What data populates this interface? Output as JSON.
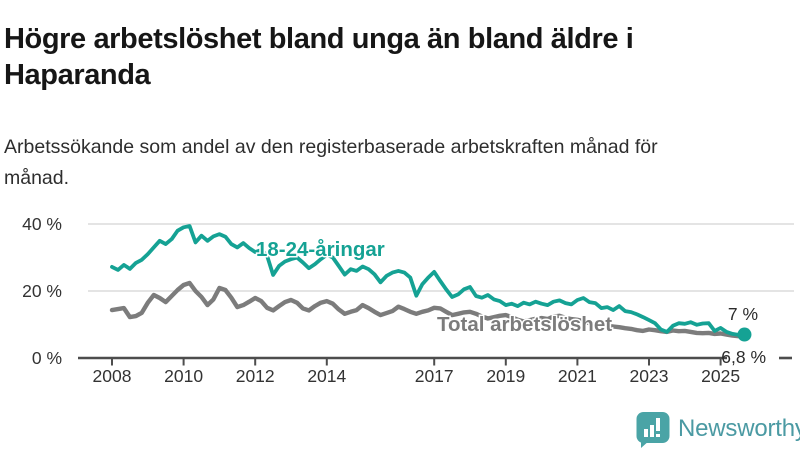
{
  "header": {
    "title": "Högre arbetslöshet bland unga än bland äldre i Haparanda",
    "subtitle": "Arbetssökande som andel av den registerbaserade arbetskraften månad för månad."
  },
  "footer": {
    "brand": "Newsworthy"
  },
  "colors": {
    "youth": "#15a294",
    "total": "#7c7c7c",
    "axis": "#4d4d4d",
    "grid": "#dcdcdc",
    "tick_text": "#333333",
    "end_label_text": "#2b2b2b",
    "logo_bubble": "#4aa4a6",
    "logo_glyph": "#ffffff"
  },
  "chart_data": {
    "type": "line",
    "title": "Högre arbetslöshet bland unga än bland äldre i Haparanda",
    "subtitle": "Arbetssökande som andel av den registerbaserade arbetskraften månad för månad.",
    "xlabel": "",
    "ylabel": "",
    "grid": "horizontal-only",
    "legend_position": "inline-labels",
    "x_start_year": 2008,
    "x_step_months": 2,
    "xlim": [
      2008,
      2025.67
    ],
    "ylim": [
      0,
      44
    ],
    "x_tick_years": [
      2008,
      2010,
      2012,
      2014,
      2017,
      2019,
      2021,
      2023,
      2025
    ],
    "x_tick_labels": [
      "2008",
      "2010",
      "2012",
      "2014",
      "2017",
      "2019",
      "2021",
      "2023",
      "2025"
    ],
    "y_ticks": [
      {
        "value": 0,
        "label": "0 %"
      },
      {
        "value": 20,
        "label": "20 %"
      },
      {
        "value": 40,
        "label": "40 %"
      }
    ],
    "series": [
      {
        "name": "Total arbetslöshet",
        "color_key": "total",
        "end_label": "6,8 %",
        "end_dot": false,
        "values": [
          14.3,
          14.6,
          14.9,
          12.2,
          12.5,
          13.5,
          16.5,
          18.8,
          17.9,
          16.7,
          18.5,
          20.3,
          21.8,
          22.4,
          20.0,
          18.2,
          15.8,
          17.5,
          20.9,
          20.3,
          18.0,
          15.2,
          15.8,
          16.8,
          17.9,
          17.0,
          15.0,
          14.2,
          15.5,
          16.7,
          17.3,
          16.5,
          14.8,
          14.2,
          15.5,
          16.5,
          17.0,
          16.2,
          14.5,
          13.2,
          13.8,
          14.3,
          15.8,
          14.9,
          13.8,
          12.8,
          13.4,
          14.0,
          15.3,
          14.6,
          13.8,
          13.2,
          13.8,
          14.2,
          15.0,
          14.8,
          13.8,
          12.8,
          13.2,
          13.6,
          13.8,
          13.2,
          12.4,
          11.8,
          12.2,
          12.6,
          12.8,
          12.2,
          11.4,
          10.9,
          11.3,
          11.7,
          11.9,
          11.6,
          12.4,
          12.6,
          12.0,
          11.6,
          11.4,
          11.0,
          10.4,
          9.9,
          9.7,
          9.5,
          9.4,
          9.2,
          8.9,
          8.7,
          8.3,
          8.1,
          8.5,
          8.3,
          8.0,
          7.8,
          8.2,
          8.0,
          8.1,
          7.8,
          7.5,
          7.4,
          7.5,
          7.2,
          7.3,
          7.0,
          6.7,
          6.5,
          6.8
        ]
      },
      {
        "name": "18-24-åringar",
        "color_key": "youth",
        "end_label": "7 %",
        "end_dot": true,
        "values": [
          27.2,
          26.3,
          27.8,
          26.6,
          28.4,
          29.3,
          31.0,
          33.0,
          35.0,
          34.0,
          35.5,
          38.0,
          39.0,
          39.4,
          34.5,
          36.5,
          35.0,
          36.3,
          37.0,
          36.2,
          34.0,
          33.0,
          34.3,
          32.8,
          31.6,
          32.2,
          30.5,
          24.8,
          27.5,
          28.8,
          29.5,
          30.0,
          28.5,
          26.8,
          28.0,
          29.5,
          30.8,
          30.0,
          27.5,
          24.9,
          26.5,
          26.0,
          27.3,
          26.5,
          25.0,
          22.6,
          24.5,
          25.5,
          26.0,
          25.5,
          24.0,
          18.6,
          22.0,
          24.0,
          25.7,
          23.0,
          20.5,
          18.2,
          19.0,
          20.5,
          21.2,
          18.5,
          18.0,
          18.8,
          17.5,
          17.0,
          15.8,
          16.2,
          15.5,
          16.5,
          16.0,
          16.8,
          16.2,
          15.8,
          16.8,
          17.2,
          16.4,
          16.0,
          17.3,
          17.9,
          16.7,
          16.4,
          14.9,
          15.2,
          14.3,
          15.5,
          14.0,
          13.7,
          13.0,
          12.2,
          11.3,
          10.4,
          8.5,
          7.8,
          9.6,
          10.4,
          10.2,
          10.7,
          9.9,
          10.3,
          10.4,
          8.1,
          9.0,
          7.8,
          7.2,
          6.9,
          7.0
        ]
      }
    ]
  }
}
